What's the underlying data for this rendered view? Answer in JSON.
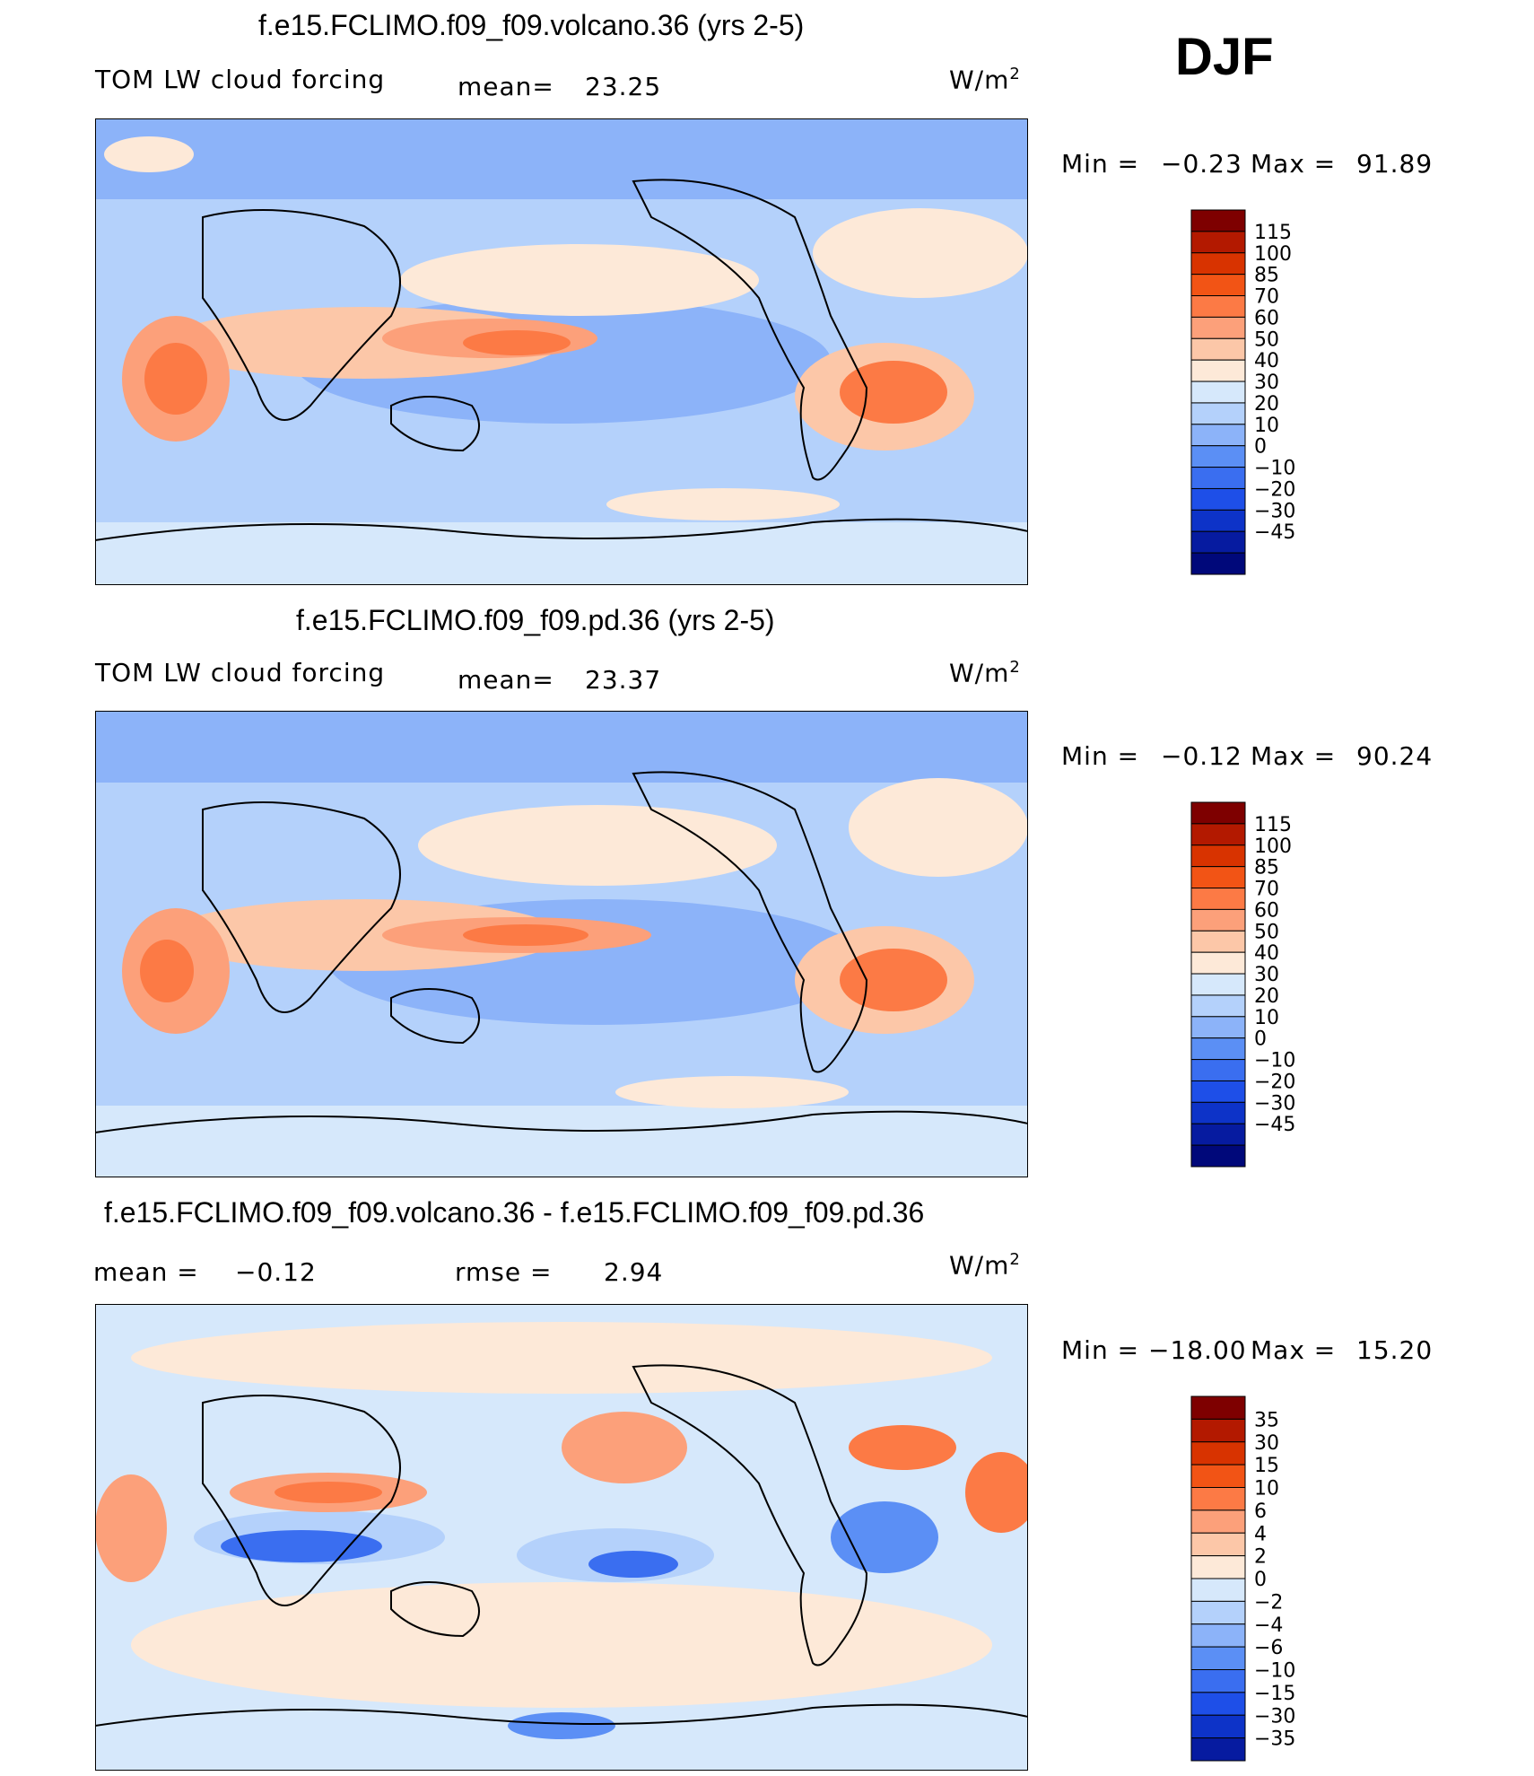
{
  "season": "DJF",
  "units_base": "W/m",
  "units_exp": "2",
  "panels": [
    {
      "title": "f.e15.FCLIMO.f09_f09.volcano.36 (yrs 2-5)",
      "left_label": "TOM LW cloud forcing",
      "mid_label": "mean=",
      "mid_value": "23.25",
      "min_label": "Min =",
      "min_value": "−0.23",
      "max_label": "Max =",
      "max_value": "91.89",
      "scale": {
        "colors": [
          "#7e0000",
          "#b31900",
          "#d83300",
          "#f25415",
          "#fc7a45",
          "#fca07a",
          "#fcc7a8",
          "#fde9d8",
          "#d6e8fb",
          "#b4d1fb",
          "#8cb3f9",
          "#5b8ff5",
          "#3a6ef0",
          "#1e4fe8",
          "#0d33c8",
          "#061ba0",
          "#00087a"
        ],
        "ticks": [
          "115",
          "100",
          "85",
          "70",
          "60",
          "50",
          "40",
          "30",
          "20",
          "10",
          "0",
          "−10",
          "−20",
          "−30",
          "−45"
        ]
      }
    },
    {
      "title": "f.e15.FCLIMO.f09_f09.pd.36 (yrs 2-5)",
      "left_label": "TOM LW cloud forcing",
      "mid_label": "mean=",
      "mid_value": "23.37",
      "min_label": "Min =",
      "min_value": "−0.12",
      "max_label": "Max =",
      "max_value": "90.24",
      "scale": {
        "colors": [
          "#7e0000",
          "#b31900",
          "#d83300",
          "#f25415",
          "#fc7a45",
          "#fca07a",
          "#fcc7a8",
          "#fde9d8",
          "#d6e8fb",
          "#b4d1fb",
          "#8cb3f9",
          "#5b8ff5",
          "#3a6ef0",
          "#1e4fe8",
          "#0d33c8",
          "#061ba0",
          "#00087a"
        ],
        "ticks": [
          "115",
          "100",
          "85",
          "70",
          "60",
          "50",
          "40",
          "30",
          "20",
          "10",
          "0",
          "−10",
          "−20",
          "−30",
          "−45"
        ]
      }
    },
    {
      "title": "f.e15.FCLIMO.f09_f09.volcano.36 - f.e15.FCLIMO.f09_f09.pd.36",
      "left_label": "mean =",
      "left_value": "−0.12",
      "mid_label": "rmse =",
      "mid_value": "2.94",
      "min_label": "Min =",
      "min_value": "−18.00",
      "max_label": "Max =",
      "max_value": "15.20",
      "scale": {
        "colors": [
          "#7e0000",
          "#b31900",
          "#d83300",
          "#f25415",
          "#fc7a45",
          "#fca07a",
          "#fcc7a8",
          "#fde9d8",
          "#d6e8fb",
          "#b4d1fb",
          "#8cb3f9",
          "#5b8ff5",
          "#3a6ef0",
          "#1e4fe8",
          "#0d33c8",
          "#061ba0"
        ],
        "ticks": [
          "35",
          "30",
          "15",
          "10",
          "6",
          "4",
          "2",
          "0",
          "−2",
          "−4",
          "−6",
          "−10",
          "−15",
          "−30",
          "−35"
        ]
      }
    }
  ]
}
